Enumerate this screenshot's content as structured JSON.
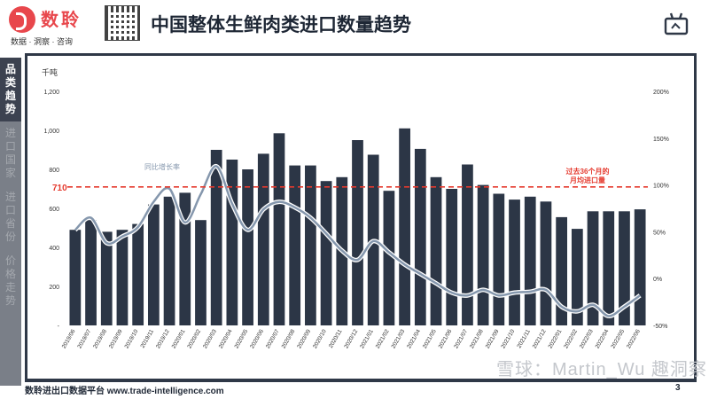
{
  "header": {
    "brand": "数聆",
    "tagline": "数据 · 洞察 · 咨询",
    "title": "中国整体生鲜肉类进口数量趋势"
  },
  "sidebar": {
    "items": [
      {
        "label": "品类趋势",
        "active": true
      },
      {
        "label": "进口国家",
        "active": false
      },
      {
        "label": "进口省份",
        "active": false
      },
      {
        "label": "价格走势",
        "active": false
      }
    ]
  },
  "footer": {
    "text": "数聆进出口数据平台 www.trade-intelligence.com",
    "page": "3"
  },
  "watermark": "雪球：Martin_Wu  趣洞察",
  "colors": {
    "bar": "#2c3646",
    "line": "#8597ad",
    "avg": "#e53a2e",
    "accent": "#e8474c"
  },
  "chart_data": {
    "type": "bar",
    "ylabel": "千吨",
    "ylim": [
      0,
      1200
    ],
    "y2lim": [
      -50,
      200
    ],
    "yticks": [
      "-",
      "200",
      "400",
      "600",
      "800",
      "1,000",
      "1,200"
    ],
    "y2ticks": [
      "-50%",
      "0%",
      "50%",
      "100%",
      "150%",
      "200%"
    ],
    "categories": [
      "2019/06",
      "2019/07",
      "2019/08",
      "2019/09",
      "2019/10",
      "2019/11",
      "2019/12",
      "2020/01",
      "2020/02",
      "2020/03",
      "2020/04",
      "2020/05",
      "2020/06",
      "2020/07",
      "2020/08",
      "2020/09",
      "2020/10",
      "2020/11",
      "2020/12",
      "2021/01",
      "2021/02",
      "2021/03",
      "2021/04",
      "2021/05",
      "2021/06",
      "2021/07",
      "2021/08",
      "2021/09",
      "2021/10",
      "2021/11",
      "2021/12",
      "2022/01",
      "2022/02",
      "2022/03",
      "2022/04",
      "2022/05",
      "2022/06"
    ],
    "series": [
      {
        "name": "",
        "values": [
          490,
          540,
          480,
          490,
          520,
          620,
          660,
          680,
          540,
          900,
          850,
          800,
          880,
          985,
          820,
          820,
          740,
          760,
          950,
          875,
          690,
          1010,
          905,
          760,
          700,
          825,
          720,
          675,
          645,
          660,
          635,
          555,
          495,
          585,
          585,
          585,
          595
        ]
      },
      {
        "name": "同比增长率",
        "values": [
          52,
          65,
          38,
          45,
          55,
          82,
          96,
          60,
          90,
          120,
          80,
          52,
          74,
          82,
          76,
          65,
          48,
          30,
          20,
          40,
          28,
          15,
          5,
          -5,
          -15,
          -18,
          -12,
          -18,
          -15,
          -14,
          -12,
          -30,
          -35,
          -28,
          -40,
          -30,
          -18
        ]
      }
    ],
    "avg_value": 710,
    "avg_label": "710",
    "avg_note_line1": "过去36个月的",
    "avg_note_line2": "月均进口量",
    "line_label": "同比增长率",
    "legend": "none"
  }
}
